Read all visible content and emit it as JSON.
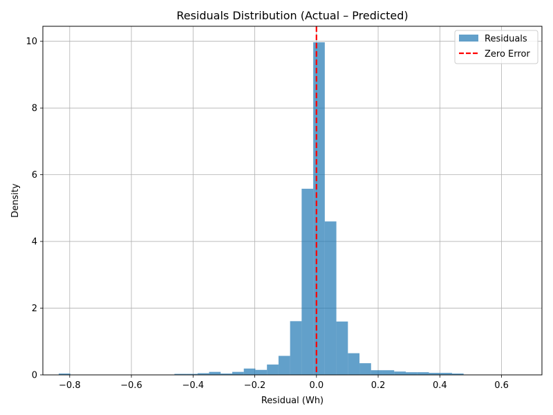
{
  "chart_data": {
    "type": "bar",
    "subtype": "histogram",
    "title": "Residuals Distribution (Actual – Predicted)",
    "xlabel": "Residual (Wh)",
    "ylabel": "Density",
    "xlim": [
      -0.887,
      0.731
    ],
    "ylim": [
      0,
      10.45
    ],
    "x_ticks": [
      -0.8,
      -0.6,
      -0.4,
      -0.2,
      0.0,
      0.2,
      0.4,
      0.6
    ],
    "x_tick_labels": [
      "−0.8",
      "−0.6",
      "−0.4",
      "−0.2",
      "0.0",
      "0.2",
      "0.4",
      "0.6"
    ],
    "y_ticks": [
      0,
      2,
      4,
      6,
      8,
      10
    ],
    "y_tick_labels": [
      "0",
      "2",
      "4",
      "6",
      "8",
      "10"
    ],
    "grid": true,
    "legend_position": "top-right",
    "series": [
      {
        "name": "Residuals",
        "color": "#1f77b4",
        "opacity": 0.7,
        "bin_width": 0.0375,
        "bins": [
          {
            "x0": -0.8355,
            "value": 0.04
          },
          {
            "x0": -0.5355,
            "value": 0.01
          },
          {
            "x0": -0.498,
            "value": 0.01
          },
          {
            "x0": -0.4605,
            "value": 0.03
          },
          {
            "x0": -0.423,
            "value": 0.03
          },
          {
            "x0": -0.3855,
            "value": 0.05
          },
          {
            "x0": -0.348,
            "value": 0.09
          },
          {
            "x0": -0.3105,
            "value": 0.04
          },
          {
            "x0": -0.273,
            "value": 0.09
          },
          {
            "x0": -0.2355,
            "value": 0.19
          },
          {
            "x0": -0.198,
            "value": 0.15
          },
          {
            "x0": -0.1605,
            "value": 0.31
          },
          {
            "x0": -0.123,
            "value": 0.57
          },
          {
            "x0": -0.0855,
            "value": 1.61
          },
          {
            "x0": -0.048,
            "value": 5.58
          },
          {
            "x0": -0.0105,
            "value": 9.97
          },
          {
            "x0": 0.027,
            "value": 4.6
          },
          {
            "x0": 0.0645,
            "value": 1.6
          },
          {
            "x0": 0.102,
            "value": 0.65
          },
          {
            "x0": 0.1395,
            "value": 0.35
          },
          {
            "x0": 0.177,
            "value": 0.14
          },
          {
            "x0": 0.2145,
            "value": 0.14
          },
          {
            "x0": 0.252,
            "value": 0.1
          },
          {
            "x0": 0.2895,
            "value": 0.08
          },
          {
            "x0": 0.327,
            "value": 0.08
          },
          {
            "x0": 0.3645,
            "value": 0.06
          },
          {
            "x0": 0.402,
            "value": 0.06
          },
          {
            "x0": 0.4395,
            "value": 0.04
          },
          {
            "x0": 0.477,
            "value": 0.01
          },
          {
            "x0": 0.627,
            "value": 0.01
          }
        ]
      },
      {
        "name": "Zero Error",
        "type": "vline",
        "x": 0.0,
        "color": "#ff0000",
        "style": "dashed"
      }
    ]
  }
}
